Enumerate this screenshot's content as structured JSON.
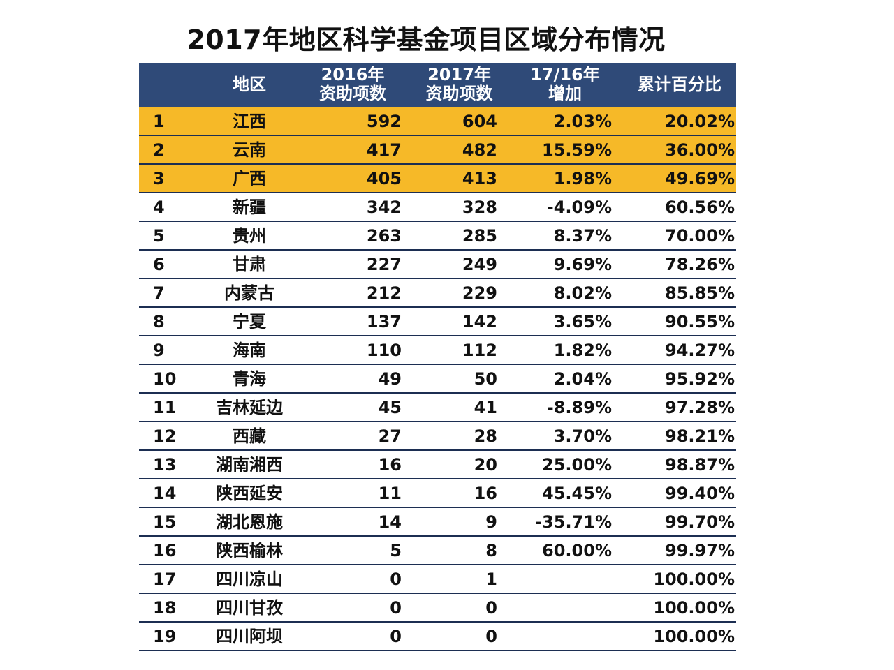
{
  "title": "2017年地区科学基金项目区域分布情况",
  "colors": {
    "header_bg": "#2f4a78",
    "highlight_bg": "#f6b928",
    "row_rule": "#1c2e52"
  },
  "table": {
    "headers": {
      "rank": "",
      "region": "地区",
      "y2016_line1": "2016年",
      "y2016_line2": "资助项数",
      "y2017_line1": "2017年",
      "y2017_line2": "资助项数",
      "growth_line1": "17/16年",
      "growth_line2": "增加",
      "cumulative": "累计百分比"
    },
    "rows": [
      {
        "rank": "1",
        "region": "江西",
        "y2016": "592",
        "y2017": "604",
        "growth": "2.03%",
        "cumulative": "20.02%",
        "highlight": true
      },
      {
        "rank": "2",
        "region": "云南",
        "y2016": "417",
        "y2017": "482",
        "growth": "15.59%",
        "cumulative": "36.00%",
        "highlight": true
      },
      {
        "rank": "3",
        "region": "广西",
        "y2016": "405",
        "y2017": "413",
        "growth": "1.98%",
        "cumulative": "49.69%",
        "highlight": true
      },
      {
        "rank": "4",
        "region": "新疆",
        "y2016": "342",
        "y2017": "328",
        "growth": "-4.09%",
        "cumulative": "60.56%",
        "highlight": false
      },
      {
        "rank": "5",
        "region": "贵州",
        "y2016": "263",
        "y2017": "285",
        "growth": "8.37%",
        "cumulative": "70.00%",
        "highlight": false
      },
      {
        "rank": "6",
        "region": "甘肃",
        "y2016": "227",
        "y2017": "249",
        "growth": "9.69%",
        "cumulative": "78.26%",
        "highlight": false
      },
      {
        "rank": "7",
        "region": "内蒙古",
        "y2016": "212",
        "y2017": "229",
        "growth": "8.02%",
        "cumulative": "85.85%",
        "highlight": false
      },
      {
        "rank": "8",
        "region": "宁夏",
        "y2016": "137",
        "y2017": "142",
        "growth": "3.65%",
        "cumulative": "90.55%",
        "highlight": false
      },
      {
        "rank": "9",
        "region": "海南",
        "y2016": "110",
        "y2017": "112",
        "growth": "1.82%",
        "cumulative": "94.27%",
        "highlight": false
      },
      {
        "rank": "10",
        "region": "青海",
        "y2016": "49",
        "y2017": "50",
        "growth": "2.04%",
        "cumulative": "95.92%",
        "highlight": false
      },
      {
        "rank": "11",
        "region": "吉林延边",
        "y2016": "45",
        "y2017": "41",
        "growth": "-8.89%",
        "cumulative": "97.28%",
        "highlight": false
      },
      {
        "rank": "12",
        "region": "西藏",
        "y2016": "27",
        "y2017": "28",
        "growth": "3.70%",
        "cumulative": "98.21%",
        "highlight": false
      },
      {
        "rank": "13",
        "region": "湖南湘西",
        "y2016": "16",
        "y2017": "20",
        "growth": "25.00%",
        "cumulative": "98.87%",
        "highlight": false
      },
      {
        "rank": "14",
        "region": "陕西延安",
        "y2016": "11",
        "y2017": "16",
        "growth": "45.45%",
        "cumulative": "99.40%",
        "highlight": false
      },
      {
        "rank": "15",
        "region": "湖北恩施",
        "y2016": "14",
        "y2017": "9",
        "growth": "-35.71%",
        "cumulative": "99.70%",
        "highlight": false
      },
      {
        "rank": "16",
        "region": "陕西榆林",
        "y2016": "5",
        "y2017": "8",
        "growth": "60.00%",
        "cumulative": "99.97%",
        "highlight": false
      },
      {
        "rank": "17",
        "region": "四川凉山",
        "y2016": "0",
        "y2017": "1",
        "growth": "",
        "cumulative": "100.00%",
        "highlight": false
      },
      {
        "rank": "18",
        "region": "四川甘孜",
        "y2016": "0",
        "y2017": "0",
        "growth": "",
        "cumulative": "100.00%",
        "highlight": false
      },
      {
        "rank": "19",
        "region": "四川阿坝",
        "y2016": "0",
        "y2017": "0",
        "growth": "",
        "cumulative": "100.00%",
        "highlight": false
      }
    ]
  }
}
